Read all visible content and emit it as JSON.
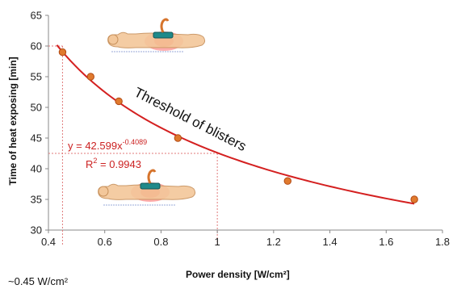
{
  "chart_data": {
    "type": "scatter",
    "title": "",
    "xlabel": "Power density [W/cm²]",
    "ylabel": "Time of heat exposing [min]",
    "xlim": [
      0.4,
      1.8
    ],
    "ylim": [
      30,
      65
    ],
    "x_ticks": [
      "0.4",
      "0.6",
      "0.8",
      "1",
      "1.2",
      "1.4",
      "1.6",
      "1.8"
    ],
    "y_ticks": [
      "30",
      "35",
      "40",
      "45",
      "50",
      "55",
      "60",
      "65"
    ],
    "grid": false,
    "points": [
      {
        "x": 0.45,
        "y": 59
      },
      {
        "x": 0.55,
        "y": 55
      },
      {
        "x": 0.65,
        "y": 51
      },
      {
        "x": 0.86,
        "y": 45
      },
      {
        "x": 1.25,
        "y": 38
      },
      {
        "x": 1.7,
        "y": 35
      }
    ],
    "trendline": {
      "type": "power",
      "coefficient": 42.599,
      "exponent": -0.4089,
      "x_range": [
        0.43,
        1.7
      ]
    },
    "equation_text": "y = 42.599x",
    "equation_exponent": "-0.4089",
    "r2_prefix": "R",
    "r2_sup": "2",
    "r2_value": " = 0.9943",
    "curve_label": "Threshold of blisters",
    "footnote": "~0.45 W/cm²",
    "reference_lines": [
      {
        "x": 0.45,
        "y": 60
      },
      {
        "x": 1.0,
        "y": 42.5
      }
    ],
    "colors": {
      "curve": "#d42020",
      "marker_fill": "#e07a2e",
      "marker_stroke": "#b24a14",
      "reference": "#e07a7a"
    },
    "icons": [
      "patient-irradiation-top-icon",
      "patient-irradiation-bottom-icon"
    ]
  }
}
